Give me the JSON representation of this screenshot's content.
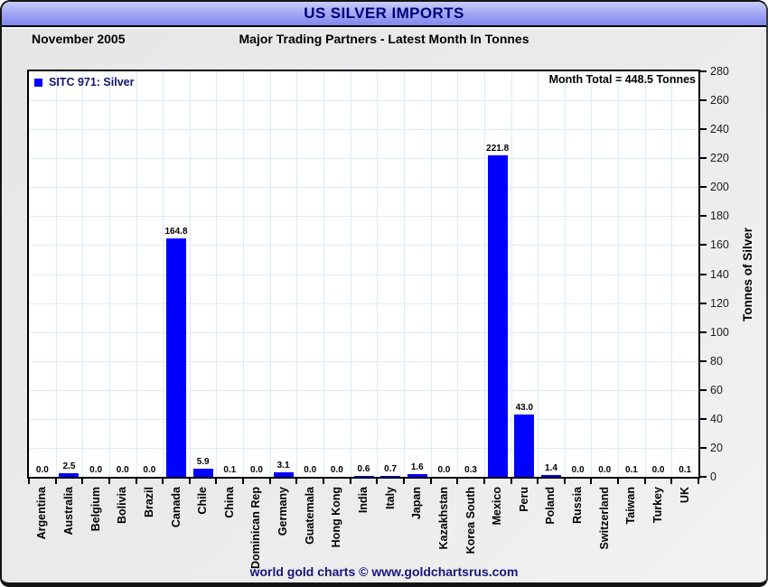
{
  "title_bar": {
    "title": "US SILVER IMPORTS"
  },
  "subheader": {
    "date": "November 2005",
    "subtitle": "Major Trading Partners - Latest Month In Tonnes"
  },
  "legend": {
    "label": "SITC 971: Silver"
  },
  "annotations": {
    "month_total": "Month Total = 448.5 Tonnes"
  },
  "y_axis": {
    "title": "Tonnes of Silver"
  },
  "footer": {
    "credit": "world gold charts © www.goldchartsrus.com"
  },
  "colors": {
    "bar_blue": "#0000ff",
    "grid_line": "#dcebf7",
    "title_text": "#00007e",
    "legend_text": "#14146d",
    "footer_text": "#16167d",
    "titlebar_gradient_top": "#c9ccf9",
    "titlebar_gradient_bottom": "#7f88ee"
  },
  "chart_data": {
    "type": "bar",
    "title": "US SILVER IMPORTS",
    "subtitle": "Major Trading Partners - Latest Month In Tonnes",
    "period": "November 2005",
    "series_name": "SITC 971: Silver",
    "month_total_tonnes": 448.5,
    "categories": [
      "Argentina",
      "Australia",
      "Belgium",
      "Bolivia",
      "Brazil",
      "Canada",
      "Chile",
      "China",
      "Dominican Rep",
      "Germany",
      "Guatemala",
      "Hong Kong",
      "India",
      "Italy",
      "Japan",
      "Kazakhstan",
      "Korea South",
      "Mexico",
      "Peru",
      "Poland",
      "Russia",
      "Switzerland",
      "Taiwan",
      "Turkey",
      "UK"
    ],
    "values": [
      0.0,
      2.5,
      0.0,
      0.0,
      0.0,
      164.8,
      5.9,
      0.1,
      0.0,
      3.1,
      0.0,
      0.0,
      0.6,
      0.7,
      1.6,
      0.0,
      0.3,
      221.8,
      43.0,
      1.4,
      0.0,
      0.0,
      0.1,
      0.0,
      0.1
    ],
    "value_label_decimals": 1,
    "ylabel": "Tonnes of Silver",
    "ylim": [
      0,
      280
    ],
    "ytick_step": 20,
    "grid": true,
    "legend_position": "top-left",
    "yaxis_side": "right",
    "bar_color": "#0000ff"
  }
}
